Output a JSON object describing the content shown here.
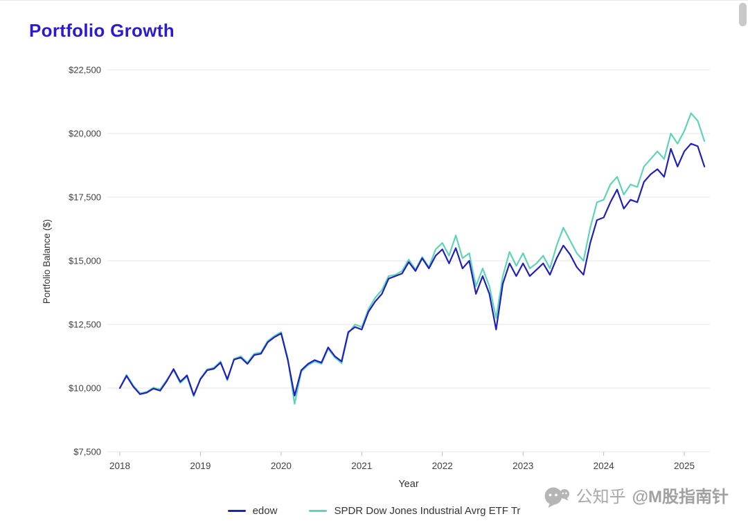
{
  "page": {
    "title": "Portfolio Growth"
  },
  "watermark": {
    "icon": "wechat-chat-icon",
    "prefix": "公知乎",
    "handle": "@M股指南针"
  },
  "chart_data": {
    "type": "line",
    "title": "Portfolio Growth",
    "title_color": "#2a1bcf",
    "xlabel": "Year",
    "ylabel": "Portfolio Balance ($)",
    "ylim": [
      7500,
      22500
    ],
    "yticks": [
      7500,
      10000,
      12500,
      15000,
      17500,
      20000,
      22500
    ],
    "ytick_labels": [
      "$7,500",
      "$10,000",
      "$12,500",
      "$15,000",
      "$17,500",
      "$20,000",
      "$22,500"
    ],
    "xticks": [
      "2018",
      "2019",
      "2020",
      "2021",
      "2022",
      "2023",
      "2024",
      "2025"
    ],
    "x_start_month": "2018-01",
    "x_end_month": "2025-04",
    "points_per_year": 12,
    "grid": "horizontal",
    "legend_position": "bottom",
    "series": [
      {
        "name": "edow",
        "color": "#211fba",
        "values": [
          10000,
          10480,
          10060,
          9760,
          9820,
          9980,
          9900,
          10280,
          10750,
          10250,
          10500,
          9720,
          10350,
          10700,
          10760,
          11000,
          10350,
          11120,
          11200,
          10950,
          11300,
          11350,
          11800,
          12000,
          12150,
          11100,
          9700,
          10700,
          10950,
          11100,
          11000,
          11600,
          11250,
          11050,
          12200,
          12400,
          12300,
          13000,
          13400,
          13700,
          14300,
          14400,
          14500,
          14950,
          14600,
          15100,
          14700,
          15200,
          15450,
          14900,
          15500,
          14700,
          15000,
          13700,
          14400,
          13700,
          12300,
          14100,
          14900,
          14400,
          14900,
          14400,
          14650,
          14900,
          14450,
          15100,
          15600,
          15250,
          14750,
          14450,
          15700,
          16600,
          16700,
          17300,
          17800,
          17050,
          17400,
          17300,
          18100,
          18400,
          18600,
          18300,
          19400,
          18700,
          19300,
          19600,
          19500,
          18700
        ]
      },
      {
        "name": "SPDR Dow Jones Industrial Avrg ETF Tr",
        "color": "#5ed3b8",
        "values": [
          10000,
          10520,
          10100,
          9800,
          9850,
          10020,
          9950,
          10320,
          10700,
          10200,
          10450,
          9680,
          10380,
          10740,
          10800,
          11050,
          10300,
          11150,
          11250,
          11000,
          11350,
          11400,
          11850,
          12050,
          12200,
          11150,
          9380,
          10650,
          10900,
          11050,
          10950,
          11550,
          11200,
          10980,
          12150,
          12500,
          12400,
          13100,
          13550,
          13850,
          14400,
          14450,
          14600,
          15050,
          14650,
          15150,
          14750,
          15450,
          15700,
          15200,
          16000,
          15100,
          15300,
          14000,
          14700,
          14000,
          12750,
          14400,
          15350,
          14800,
          15300,
          14700,
          14900,
          15200,
          14700,
          15600,
          16300,
          15800,
          15300,
          15000,
          16300,
          17300,
          17400,
          18000,
          18300,
          17600,
          18000,
          17900,
          18700,
          19000,
          19300,
          19000,
          20000,
          19600,
          20100,
          20800,
          20500,
          19700
        ]
      }
    ]
  }
}
